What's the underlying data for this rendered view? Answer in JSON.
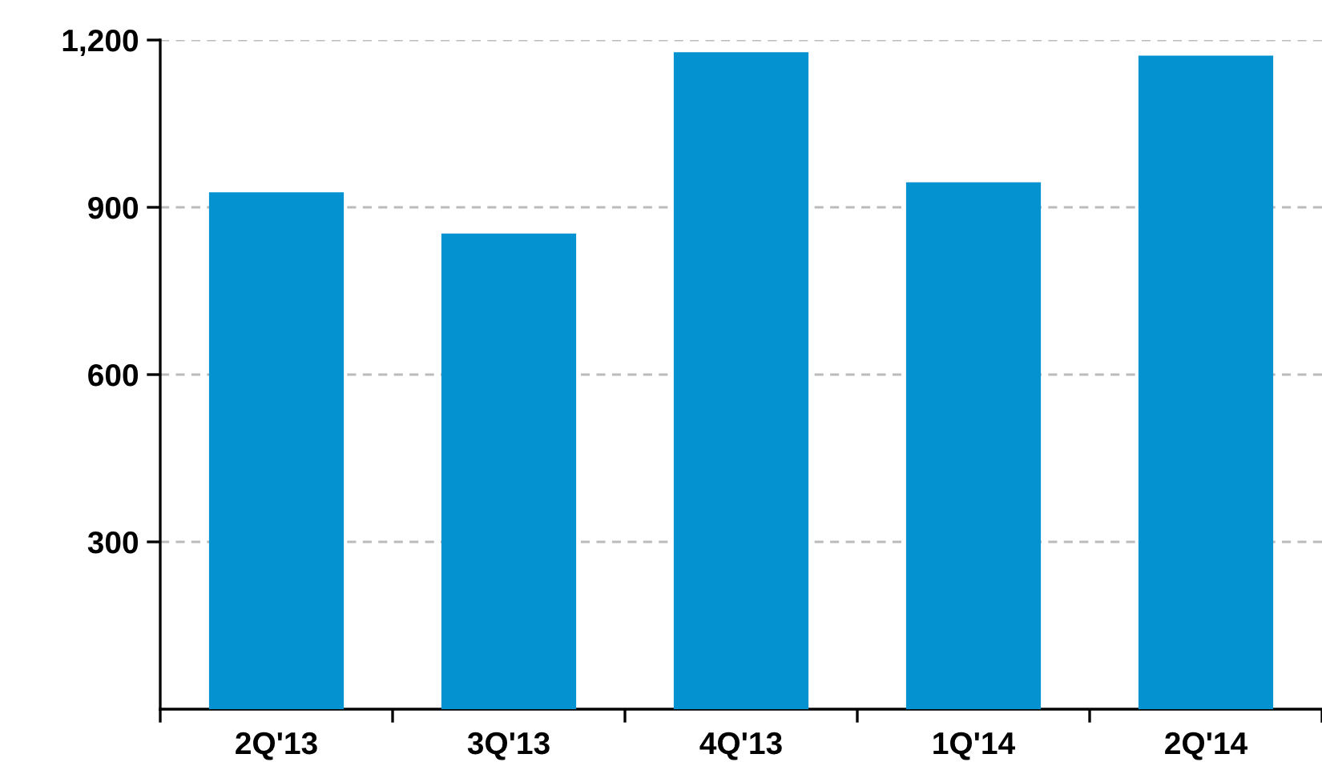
{
  "chart_data": {
    "type": "bar",
    "categories": [
      "2Q'13",
      "3Q'13",
      "4Q'13",
      "1Q'14",
      "2Q'14"
    ],
    "values": [
      927,
      853,
      1178,
      945,
      1172
    ],
    "color": "#0592d0",
    "ylim": [
      0,
      1200
    ],
    "yticks": [
      {
        "value": 300,
        "label": "300"
      },
      {
        "value": 600,
        "label": "600"
      },
      {
        "value": 900,
        "label": "900"
      },
      {
        "value": 1200,
        "label": "1,200"
      }
    ],
    "grid": "y"
  }
}
